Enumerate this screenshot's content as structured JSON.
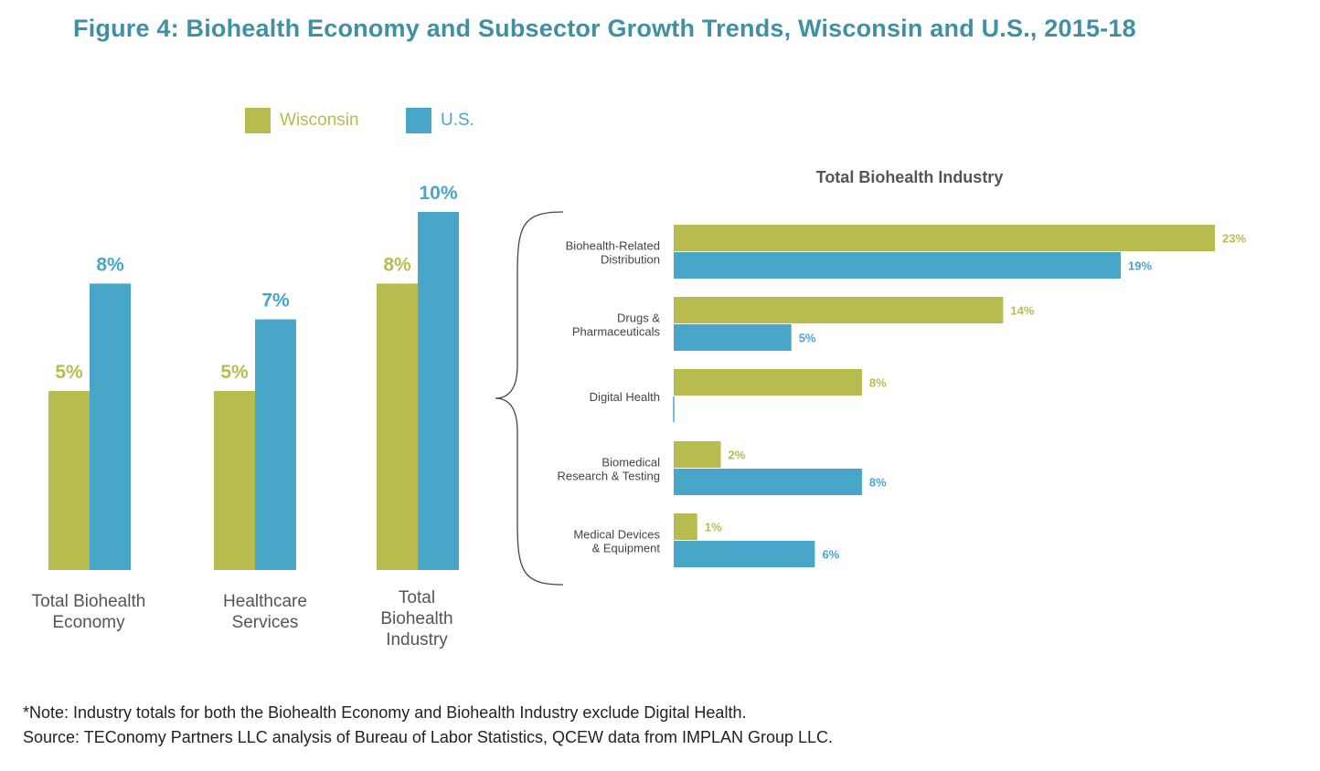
{
  "title": "Figure 4: Biohealth Economy and Subsector Growth Trends, Wisconsin and U.S., 2015-18",
  "colors": {
    "wisconsin": "#b8bc4e",
    "us": "#48a6c8",
    "title": "#3f8fa5",
    "text": "#555555"
  },
  "legend": [
    {
      "name": "Wisconsin",
      "color": "#b8bc4e"
    },
    {
      "name": "U.S.",
      "color": "#48a6c8"
    }
  ],
  "chart_data": [
    {
      "type": "bar",
      "orientation": "vertical",
      "title": "",
      "categories": [
        [
          "Total Biohealth",
          "Economy"
        ],
        [
          "Healthcare",
          "Services"
        ],
        [
          "Total",
          "Biohealth",
          "Industry"
        ]
      ],
      "series": [
        {
          "name": "Wisconsin",
          "values": [
            5,
            5,
            8
          ],
          "labels": [
            "5%",
            "5%",
            "8%"
          ]
        },
        {
          "name": "U.S.",
          "values": [
            8,
            7,
            10
          ],
          "labels": [
            "8%",
            "7%",
            "10%"
          ]
        }
      ],
      "ylim": [
        0,
        10
      ],
      "xlabel": "",
      "ylabel": "",
      "grid": false
    },
    {
      "type": "bar",
      "orientation": "horizontal",
      "title": "Total Biohealth Industry",
      "categories": [
        [
          "Biohealth-Related",
          "Distribution"
        ],
        [
          "Drugs &",
          "Pharmaceuticals"
        ],
        [
          "Digital Health"
        ],
        [
          "Biomedical",
          "Research & Testing"
        ],
        [
          "Medical Devices",
          "& Equipment"
        ]
      ],
      "series": [
        {
          "name": "Wisconsin",
          "values": [
            23,
            14,
            8,
            2,
            1
          ],
          "labels": [
            "23%",
            "14%",
            "8%",
            "2%",
            "1%"
          ]
        },
        {
          "name": "U.S.",
          "values": [
            19,
            5,
            0,
            8,
            6
          ],
          "labels": [
            "19%",
            "5%",
            "",
            "8%",
            "6%"
          ]
        }
      ],
      "xlim": [
        0,
        23
      ],
      "xlabel": "",
      "ylabel": "",
      "grid": false
    }
  ],
  "note": "*Note: Industry totals for both the Biohealth Economy and Biohealth Industry exclude Digital Health.",
  "source": "Source: TEConomy Partners LLC analysis of Bureau of Labor Statistics, QCEW data from IMPLAN Group LLC."
}
